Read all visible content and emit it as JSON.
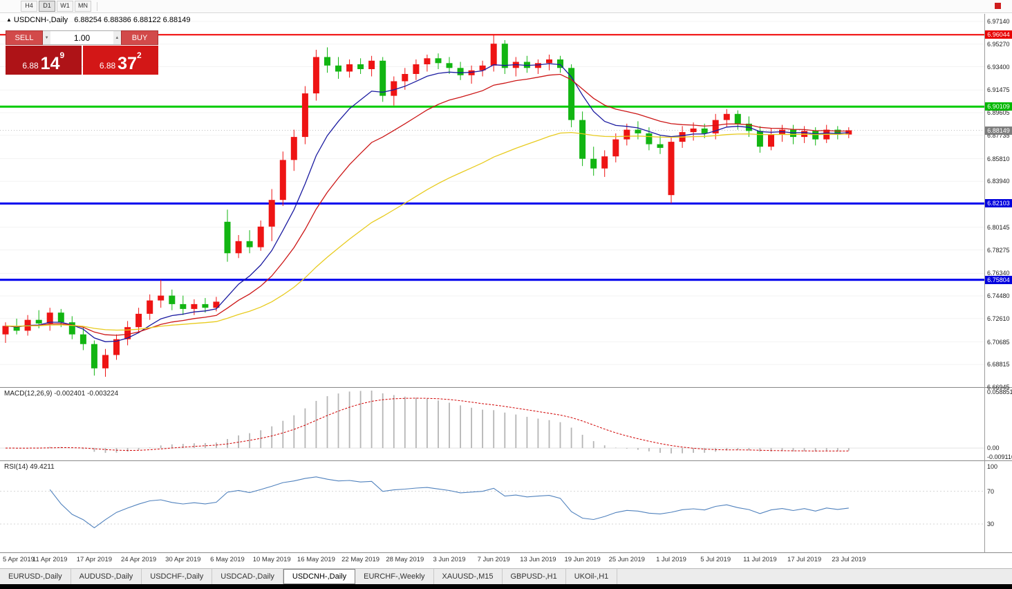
{
  "toolbar": {
    "timeframes": [
      "H4",
      "D1",
      "W1",
      "MN"
    ],
    "active": "D1"
  },
  "icons": {
    "up_arrow": "▲",
    "spin_up": "▲",
    "spin_down": "▼"
  },
  "chart": {
    "symbol_title": "USDCNH-,Daily",
    "ohlc_text": "6.88254 6.88386 6.88122 6.88149"
  },
  "trade_panel": {
    "sell_label": "SELL",
    "buy_label": "BUY",
    "volume": "1.00",
    "bid": {
      "prefix": "6.88",
      "pips": "14",
      "frac": "9"
    },
    "ask": {
      "prefix": "6.88",
      "pips": "37",
      "frac": "2"
    }
  },
  "price_axis": {
    "ticks": [
      "6.97140",
      "6.95270",
      "6.93400",
      "6.91475",
      "6.89605",
      "6.87735",
      "6.85810",
      "6.83940",
      "6.82070",
      "6.80145",
      "6.78275",
      "6.76340",
      "6.74480",
      "6.72610",
      "6.70685",
      "6.68815",
      "6.66945"
    ]
  },
  "price_labels": [
    {
      "text": "6.96044",
      "color": "#e80000"
    },
    {
      "text": "6.90109",
      "color": "#00b800"
    },
    {
      "text": "6.88149",
      "color": "#7d7d7d"
    },
    {
      "text": "6.82103",
      "color": "#0000dd"
    },
    {
      "text": "6.75804",
      "color": "#0000dd"
    }
  ],
  "macd": {
    "label": "MACD(12,26,9) -0.002401 -0.003224",
    "params": [
      12,
      26,
      9
    ],
    "main_value": -0.002401,
    "signal_value": -0.003224,
    "axis": [
      "0.058851",
      "0.00",
      "-0.009116"
    ]
  },
  "rsi": {
    "label": "RSI(14) 49.4211",
    "period": 14,
    "value": 49.4211,
    "axis": [
      "100",
      "70",
      "30"
    ]
  },
  "tabs": {
    "items": [
      "EURUSD-,Daily",
      "AUDUSD-,Daily",
      "USDCHF-,Daily",
      "USDCAD-,Daily",
      "USDCNH-,Daily",
      "EURCHF-,Weekly",
      "XAUUSD-,M15",
      "GBPUSD-,H1",
      "UKOil-,H1"
    ],
    "active": 4
  },
  "chart_data": {
    "type": "candlestick",
    "symbol": "USDCNH-",
    "timeframe": "Daily",
    "title": "USDCNH-,Daily",
    "y_min": 6.66945,
    "y_max": 6.9714,
    "last_price": 6.88149,
    "up_color": "#ee1414",
    "down_color": "#12b512",
    "hlines": [
      {
        "price": 6.96044,
        "color": "#f00000",
        "width": 2
      },
      {
        "price": 6.90109,
        "color": "#00cc00",
        "width": 3
      },
      {
        "price": 6.82103,
        "color": "#0000ee",
        "width": 3
      },
      {
        "price": 6.75804,
        "color": "#0000ee",
        "width": 3
      }
    ],
    "moving_averages": [
      {
        "period": 8,
        "color": "#1a1aa0"
      },
      {
        "period": 16,
        "color": "#cc1616"
      },
      {
        "period": 40,
        "color": "#e8cb1e"
      }
    ],
    "macd_range": [
      0.058851,
      -0.009116
    ],
    "label_every": 4,
    "date_labels": [
      "5 Apr 2019",
      "11 Apr 2019",
      "17 Apr 2019",
      "24 Apr 2019",
      "30 Apr 2019",
      "6 May 2019",
      "10 May 2019",
      "16 May 2019",
      "22 May 2019",
      "28 May 2019",
      "3 Jun 2019",
      "7 Jun 2019",
      "13 Jun 2019",
      "19 Jun 2019",
      "25 Jun 2019",
      "1 Jul 2019",
      "5 Jul 2019",
      "11 Jul 2019",
      "17 Jul 2019",
      "23 Jul 2019"
    ],
    "ohlc": [
      [
        6.713,
        6.723,
        6.706,
        6.72
      ],
      [
        6.72,
        6.726,
        6.713,
        6.716
      ],
      [
        6.716,
        6.729,
        6.712,
        6.725
      ],
      [
        6.725,
        6.733,
        6.718,
        6.722
      ],
      [
        6.722,
        6.735,
        6.716,
        6.731
      ],
      [
        6.731,
        6.734,
        6.719,
        6.723
      ],
      [
        6.723,
        6.728,
        6.709,
        6.713
      ],
      [
        6.713,
        6.719,
        6.7,
        6.705
      ],
      [
        6.705,
        6.708,
        6.679,
        6.685
      ],
      [
        6.685,
        6.701,
        6.678,
        6.696
      ],
      [
        6.696,
        6.713,
        6.692,
        6.709
      ],
      [
        6.709,
        6.724,
        6.704,
        6.719
      ],
      [
        6.719,
        6.735,
        6.714,
        6.73
      ],
      [
        6.73,
        6.746,
        6.725,
        6.741
      ],
      [
        6.741,
        6.758,
        6.735,
        6.745
      ],
      [
        6.745,
        6.75,
        6.733,
        6.738
      ],
      [
        6.738,
        6.745,
        6.729,
        6.734
      ],
      [
        6.734,
        6.742,
        6.729,
        6.738
      ],
      [
        6.738,
        6.743,
        6.731,
        6.735
      ],
      [
        6.735,
        6.744,
        6.732,
        6.74
      ],
      [
        6.806,
        6.816,
        6.773,
        6.78
      ],
      [
        6.78,
        6.795,
        6.776,
        6.79
      ],
      [
        6.79,
        6.799,
        6.78,
        6.785
      ],
      [
        6.785,
        6.807,
        6.782,
        6.802
      ],
      [
        6.802,
        6.833,
        6.79,
        6.824
      ],
      [
        6.824,
        6.864,
        6.819,
        6.857
      ],
      [
        6.857,
        6.882,
        6.848,
        6.876
      ],
      [
        6.876,
        6.918,
        6.87,
        6.912
      ],
      [
        6.912,
        6.948,
        6.906,
        6.942
      ],
      [
        6.942,
        6.95,
        6.929,
        6.935
      ],
      [
        6.935,
        6.942,
        6.924,
        6.93
      ],
      [
        6.93,
        6.94,
        6.925,
        6.936
      ],
      [
        6.936,
        6.941,
        6.928,
        6.932
      ],
      [
        6.932,
        6.943,
        6.926,
        6.939
      ],
      [
        6.939,
        6.942,
        6.905,
        6.91
      ],
      [
        6.91,
        6.926,
        6.902,
        6.922
      ],
      [
        6.922,
        6.933,
        6.915,
        6.928
      ],
      [
        6.928,
        6.94,
        6.923,
        6.936
      ],
      [
        6.936,
        6.944,
        6.93,
        6.941
      ],
      [
        6.941,
        6.945,
        6.932,
        6.937
      ],
      [
        6.937,
        6.942,
        6.928,
        6.933
      ],
      [
        6.933,
        6.938,
        6.923,
        6.927
      ],
      [
        6.927,
        6.935,
        6.92,
        6.931
      ],
      [
        6.931,
        6.939,
        6.926,
        6.935
      ],
      [
        6.935,
        6.96,
        6.93,
        6.953
      ],
      [
        6.953,
        6.956,
        6.928,
        6.933
      ],
      [
        6.933,
        6.942,
        6.926,
        6.938
      ],
      [
        6.938,
        6.943,
        6.929,
        6.933
      ],
      [
        6.933,
        6.94,
        6.928,
        6.937
      ],
      [
        6.937,
        6.944,
        6.931,
        6.94
      ],
      [
        6.94,
        6.943,
        6.929,
        6.933
      ],
      [
        6.933,
        6.936,
        6.884,
        6.89
      ],
      [
        6.89,
        6.897,
        6.852,
        6.858
      ],
      [
        6.858,
        6.868,
        6.844,
        6.85
      ],
      [
        6.85,
        6.865,
        6.843,
        6.86
      ],
      [
        6.86,
        6.879,
        6.855,
        6.874
      ],
      [
        6.874,
        6.887,
        6.869,
        6.882
      ],
      [
        6.882,
        6.889,
        6.874,
        6.879
      ],
      [
        6.879,
        6.884,
        6.865,
        6.87
      ],
      [
        6.87,
        6.877,
        6.862,
        6.867
      ],
      [
        6.828,
        6.876,
        6.821,
        6.872
      ],
      [
        6.872,
        6.885,
        6.867,
        6.88
      ],
      [
        6.88,
        6.888,
        6.873,
        6.883
      ],
      [
        6.883,
        6.887,
        6.875,
        6.879
      ],
      [
        6.879,
        6.895,
        6.874,
        6.89
      ],
      [
        6.89,
        6.899,
        6.884,
        6.895
      ],
      [
        6.895,
        6.898,
        6.882,
        6.887
      ],
      [
        6.887,
        6.893,
        6.876,
        6.881
      ],
      [
        6.881,
        6.885,
        6.863,
        6.868
      ],
      [
        6.868,
        6.883,
        6.865,
        6.878
      ],
      [
        6.878,
        6.886,
        6.872,
        6.882
      ],
      [
        6.882,
        6.886,
        6.87,
        6.876
      ],
      [
        6.876,
        6.885,
        6.871,
        6.881
      ],
      [
        6.881,
        6.884,
        6.869,
        6.874
      ],
      [
        6.874,
        6.886,
        6.871,
        6.882
      ],
      [
        6.882,
        6.885,
        6.874,
        6.878
      ],
      [
        6.878,
        6.884,
        6.875,
        6.88149
      ]
    ]
  }
}
